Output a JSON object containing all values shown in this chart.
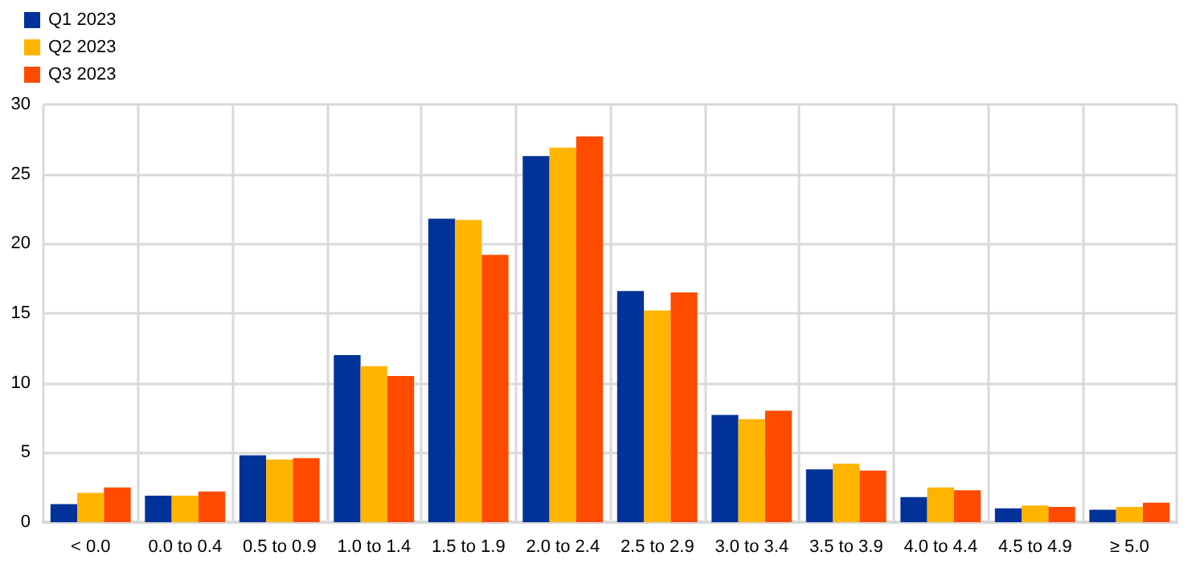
{
  "chart_data": {
    "type": "bar",
    "categories": [
      "< 0.0",
      "0.0 to 0.4",
      "0.5 to 0.9",
      "1.0 to 1.4",
      "1.5 to 1.9",
      "2.0 to 2.4",
      "2.5 to 2.9",
      "3.0 to 3.4",
      "3.5 to 3.9",
      "4.0 to 4.4",
      "4.5 to 4.9",
      "≥ 5.0"
    ],
    "series": [
      {
        "name": "Q1 2023",
        "color": "#003299",
        "values": [
          1.3,
          1.9,
          4.8,
          12.0,
          21.8,
          26.3,
          16.6,
          7.7,
          3.8,
          1.8,
          1.0,
          0.9
        ]
      },
      {
        "name": "Q2 2023",
        "color": "#ffb400",
        "values": [
          2.1,
          1.9,
          4.5,
          11.2,
          21.7,
          26.9,
          15.2,
          7.4,
          4.2,
          2.5,
          1.2,
          1.1
        ]
      },
      {
        "name": "Q3 2023",
        "color": "#ff4b00",
        "values": [
          2.5,
          2.2,
          4.6,
          10.5,
          19.2,
          27.7,
          16.5,
          8.0,
          3.7,
          2.3,
          1.1,
          1.4
        ]
      }
    ],
    "ylim": [
      0,
      30
    ],
    "yticks": [
      0,
      5,
      10,
      15,
      20,
      25,
      30
    ],
    "grid": true,
    "legend": "top left"
  }
}
